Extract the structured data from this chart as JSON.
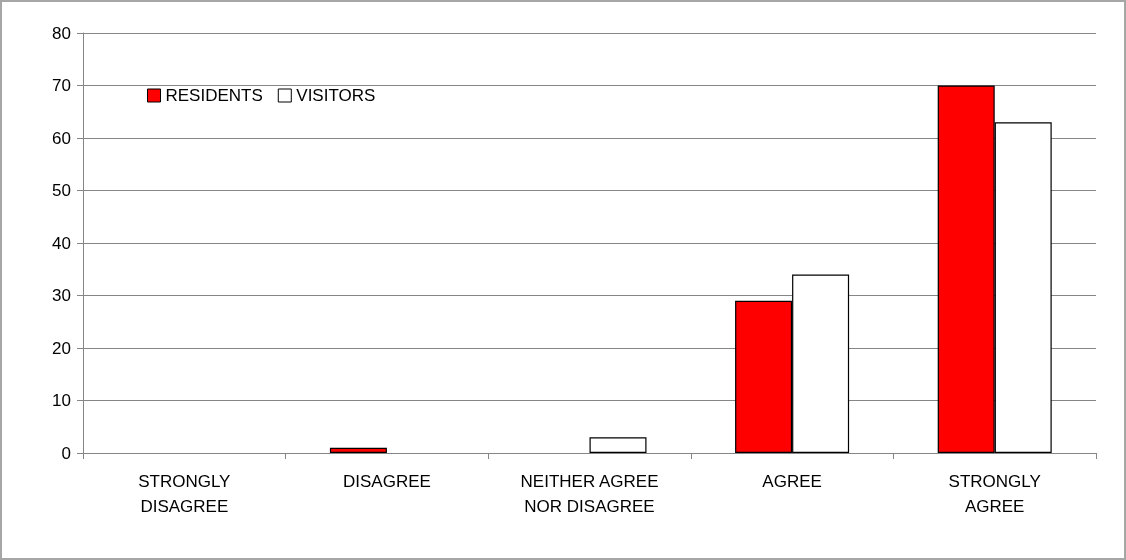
{
  "chart_data": {
    "type": "bar",
    "categories": [
      "STRONGLY DISAGREE",
      "DISAGREE",
      "NEITHER AGREE NOR DISAGREE",
      "AGREE",
      "STRONGLY AGREE"
    ],
    "series": [
      {
        "name": "RESIDENTS",
        "color": "#ff0000",
        "values": [
          0,
          1,
          0,
          29,
          70
        ]
      },
      {
        "name": "VISITORS",
        "color": "#ffffff",
        "values": [
          0,
          0,
          3,
          34,
          63
        ]
      }
    ],
    "ylim": [
      0,
      80
    ],
    "yticks": [
      0,
      10,
      20,
      30,
      40,
      50,
      60,
      70,
      80
    ],
    "grid": "y",
    "legend": "top left"
  }
}
